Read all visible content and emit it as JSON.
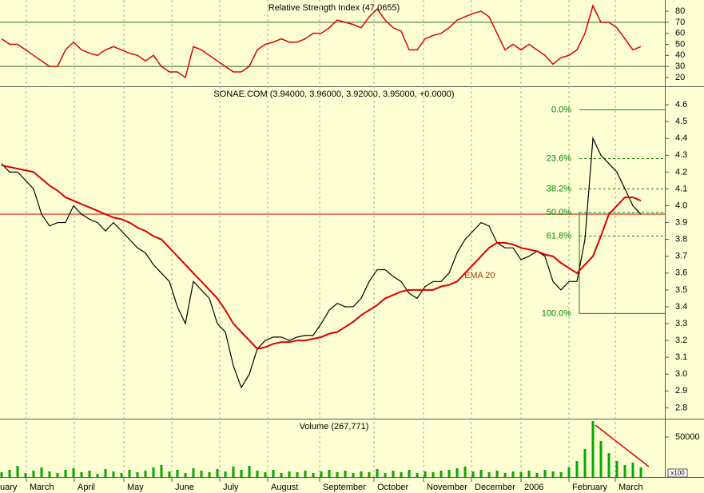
{
  "chart_data": {
    "type": "stock",
    "rsi_title": "Relative Strength Index (47.0655)",
    "title": "SONAE.COM (3.94000, 3.96000, 3.92000, 3.95000, +0.0000)",
    "volume_title": "Volume (267,771)",
    "volume_unit": "x100",
    "ema_label": "EMA 20",
    "months": [
      {
        "value": -0.6,
        "label": "uary"
      },
      {
        "value": 3.1,
        "label": "March"
      },
      {
        "value": 9.1,
        "label": "April"
      },
      {
        "value": 15.3,
        "label": "May"
      },
      {
        "value": 21.3,
        "label": "June"
      },
      {
        "value": 27.3,
        "label": "July"
      },
      {
        "value": 33.3,
        "label": "August"
      },
      {
        "value": 39.8,
        "label": "September"
      },
      {
        "value": 46.6,
        "label": "October"
      },
      {
        "value": 52.8,
        "label": "November"
      },
      {
        "value": 58.8,
        "label": "December"
      },
      {
        "value": 65,
        "label": "2006"
      },
      {
        "value": 71,
        "label": "February"
      },
      {
        "value": 76.8,
        "label": "March"
      }
    ],
    "series": [
      {
        "name": "Close",
        "color": "#000000",
        "values": [
          4.25,
          4.2,
          4.2,
          4.15,
          4.1,
          3.95,
          3.88,
          3.9,
          3.9,
          4.0,
          3.95,
          3.92,
          3.9,
          3.85,
          3.9,
          3.85,
          3.8,
          3.75,
          3.72,
          3.65,
          3.6,
          3.55,
          3.4,
          3.3,
          3.55,
          3.5,
          3.45,
          3.3,
          3.25,
          3.05,
          2.92,
          3.0,
          3.15,
          3.2,
          3.22,
          3.22,
          3.2,
          3.22,
          3.23,
          3.23,
          3.3,
          3.38,
          3.42,
          3.4,
          3.4,
          3.45,
          3.55,
          3.62,
          3.62,
          3.58,
          3.55,
          3.48,
          3.45,
          3.52,
          3.55,
          3.55,
          3.6,
          3.72,
          3.8,
          3.85,
          3.9,
          3.88,
          3.78,
          3.75,
          3.75,
          3.68,
          3.7,
          3.73,
          3.7,
          3.55,
          3.5,
          3.55,
          3.55,
          3.8,
          4.4,
          4.3,
          4.25,
          4.2,
          4.1,
          4.0,
          3.95
        ]
      },
      {
        "name": "EMA 20",
        "color": "#dd0000",
        "values": [
          4.24,
          4.23,
          4.22,
          4.21,
          4.2,
          4.16,
          4.12,
          4.09,
          4.05,
          4.03,
          4.01,
          3.99,
          3.97,
          3.95,
          3.93,
          3.92,
          3.9,
          3.87,
          3.85,
          3.82,
          3.8,
          3.75,
          3.7,
          3.65,
          3.6,
          3.55,
          3.5,
          3.45,
          3.38,
          3.3,
          3.25,
          3.2,
          3.15,
          3.16,
          3.18,
          3.19,
          3.19,
          3.2,
          3.2,
          3.21,
          3.22,
          3.24,
          3.25,
          3.28,
          3.31,
          3.35,
          3.38,
          3.41,
          3.45,
          3.47,
          3.49,
          3.5,
          3.5,
          3.5,
          3.5,
          3.52,
          3.53,
          3.55,
          3.6,
          3.65,
          3.7,
          3.75,
          3.78,
          3.78,
          3.77,
          3.75,
          3.74,
          3.73,
          3.71,
          3.7,
          3.66,
          3.63,
          3.6,
          3.65,
          3.7,
          3.82,
          3.95,
          4.0,
          4.05,
          4.05,
          4.03
        ]
      }
    ],
    "rsi": {
      "color": "#dd0000",
      "values": [
        55,
        50,
        50,
        45,
        40,
        35,
        30,
        30,
        45,
        52,
        45,
        42,
        40,
        45,
        48,
        45,
        42,
        40,
        35,
        40,
        30,
        25,
        25,
        20,
        48,
        45,
        40,
        35,
        30,
        25,
        25,
        30,
        45,
        50,
        52,
        55,
        52,
        52,
        55,
        60,
        60,
        65,
        72,
        70,
        68,
        65,
        75,
        82,
        72,
        65,
        62,
        45,
        45,
        55,
        58,
        60,
        65,
        72,
        75,
        78,
        80,
        75,
        60,
        45,
        50,
        45,
        50,
        45,
        40,
        32,
        38,
        40,
        45,
        60,
        85,
        70,
        70,
        65,
        55,
        45,
        48
      ],
      "ylim": [
        12,
        88
      ],
      "yticks": [
        20,
        30,
        40,
        50,
        60,
        70,
        80
      ],
      "levels": [
        70,
        30
      ]
    },
    "volume": {
      "color": "#00aa00",
      "values": [
        6000,
        9000,
        14000,
        5000,
        8000,
        12000,
        7000,
        5000,
        9000,
        11000,
        6000,
        8000,
        4000,
        10000,
        7000,
        5000,
        9000,
        6000,
        8000,
        12000,
        15000,
        7000,
        9000,
        5000,
        11000,
        8000,
        6000,
        10000,
        7000,
        13000,
        9000,
        14000,
        8000,
        6000,
        9000,
        5000,
        7000,
        6000,
        8000,
        5000,
        7000,
        9000,
        6000,
        8000,
        5000,
        7000,
        6000,
        10000,
        5000,
        8000,
        6000,
        9000,
        5000,
        7000,
        6000,
        8000,
        9000,
        11000,
        13000,
        7000,
        9000,
        6000,
        8000,
        5000,
        7000,
        6000,
        8000,
        5000,
        9000,
        7000,
        6000,
        12000,
        20000,
        35000,
        70000,
        45000,
        30000,
        20000,
        15000,
        18000,
        12000
      ],
      "ylim": [
        0,
        72000
      ],
      "yticks": [
        50000
      ]
    },
    "ylim": [
      2.74,
      4.7
    ],
    "yticks": [
      2.8,
      2.9,
      {
        "value": 3,
        "label": "3.0"
      },
      3.1,
      3.2,
      3.3,
      3.4,
      3.5,
      3.6,
      3.7,
      3.8,
      3.9,
      {
        "value": 4,
        "label": "4.0"
      },
      4.1,
      4.2,
      4.3,
      4.4,
      4.5,
      4.6
    ],
    "reference_line": 3.95,
    "fibonacci": [
      {
        "label": "0.0%",
        "price": 4.57
      },
      {
        "label": "23.6%",
        "price": 4.28
      },
      {
        "label": "38.2%",
        "price": 4.1
      },
      {
        "label": "50.0%",
        "price": 3.96
      },
      {
        "label": "61.8%",
        "price": 3.82
      },
      {
        "label": "100.0%",
        "price": 3.36
      }
    ]
  }
}
